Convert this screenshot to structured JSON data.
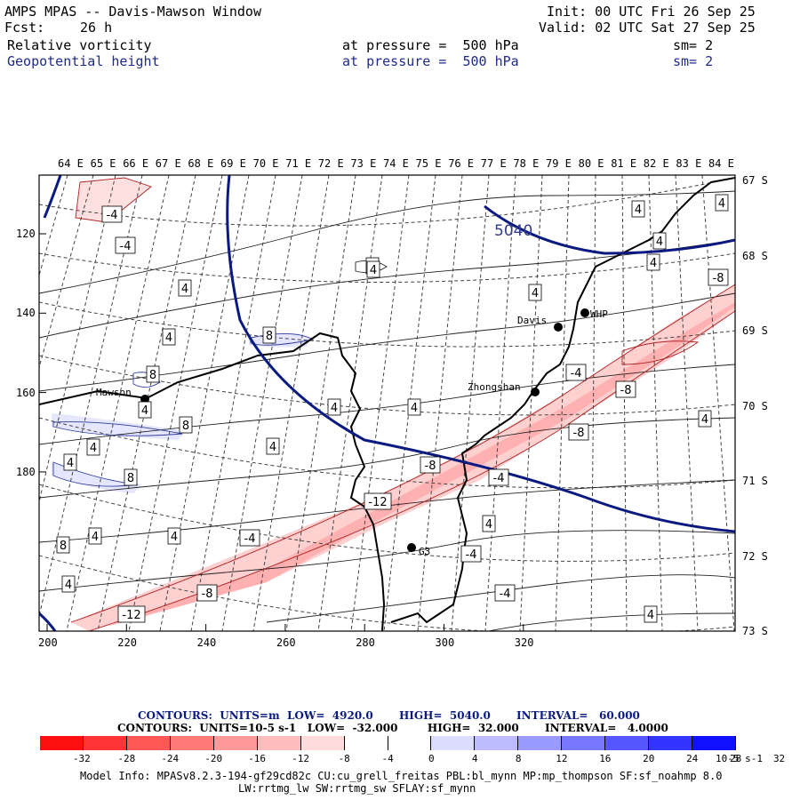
{
  "header": {
    "title": "AMPS MPAS -- Davis-Mawson Window",
    "fcst_label": "Fcst:",
    "fcst_value": "26 h",
    "init": "Init: 00 UTC Fri 26 Sep 25",
    "valid": "Valid: 02 UTC Sat 27 Sep 25",
    "field1": {
      "name": "Relative vorticity",
      "level": "at pressure =  500 hPa",
      "sm": "sm= 2"
    },
    "field2": {
      "name": "Geopotential height",
      "level": "at pressure =  500 hPa",
      "sm": "sm= 2"
    }
  },
  "map": {
    "lon_labels": [
      "64 E",
      "65 E",
      "66 E",
      "67 E",
      "68 E",
      "69 E",
      "70 E",
      "71 E",
      "72 E",
      "73 E",
      "74 E",
      "75 E",
      "76 E",
      "77 E",
      "78 E",
      "79 E",
      "80 E",
      "81 E",
      "82 E",
      "83 E",
      "84 E"
    ],
    "lat_labels": [
      "67 S",
      "68 S",
      "69 S",
      "70 S",
      "71 S",
      "72 S",
      "73 S"
    ],
    "x_ticks": [
      "200",
      "220",
      "240",
      "260",
      "280",
      "300",
      "320"
    ],
    "y_ticks": [
      "120",
      "140",
      "160",
      "180"
    ],
    "stations": [
      "Mawson",
      "Davis",
      "WHP",
      "Zhongshan",
      "G3"
    ],
    "height_contour_label": "5040",
    "vort_labels": [
      "-4",
      "-4",
      "4",
      "8",
      "4",
      "8",
      "8",
      "4",
      "8",
      "4",
      "8",
      "4",
      "8",
      "4",
      "4",
      "-4",
      "4",
      "4",
      "-8",
      "-12",
      "4",
      "-8",
      "4",
      "4",
      "-4",
      "-12",
      "-8",
      "4",
      "-4",
      "4",
      "4",
      "-8",
      "-8",
      "4",
      "-4",
      "4",
      "-4",
      "4",
      "4",
      "4"
    ]
  },
  "legend": {
    "line1": "CONTOURS:  UNITS=m  LOW=  4920.0       HIGH=  5040.0       INTERVAL=   60.000",
    "line2": "CONTOURS:  UNITS=10-5 s-1   LOW=  -32.000        HIGH=  32.000       INTERVAL=   4.0000",
    "colorbar_labels": [
      "-32",
      "-28",
      "-24",
      "-20",
      "-16",
      "-12",
      "-8",
      "-4",
      "0",
      "4",
      "8",
      "12",
      "16",
      "20",
      "24",
      "28",
      "32"
    ],
    "colorbar_units": "10-5 s-1",
    "colors": [
      "#ff1010",
      "#ff3434",
      "#ff5656",
      "#ff7878",
      "#ff9a9a",
      "#ffbcbc",
      "#ffdcdc",
      "#ffffff",
      "#ffffff",
      "#dcdcff",
      "#bcbcff",
      "#9a9aff",
      "#7878ff",
      "#5656ff",
      "#3434ff",
      "#1010ff"
    ]
  },
  "footer": {
    "line1": "Model Info: MPASv8.2.3-194-gf29cd82c CU:cu_grell_freitas PBL:bl_mynn MP:mp_thompson SF:sf_noahmp 8.0",
    "line2": "LW:rrtmg_lw SW:rrtmg_sw SFLAY:sf_mynn"
  }
}
